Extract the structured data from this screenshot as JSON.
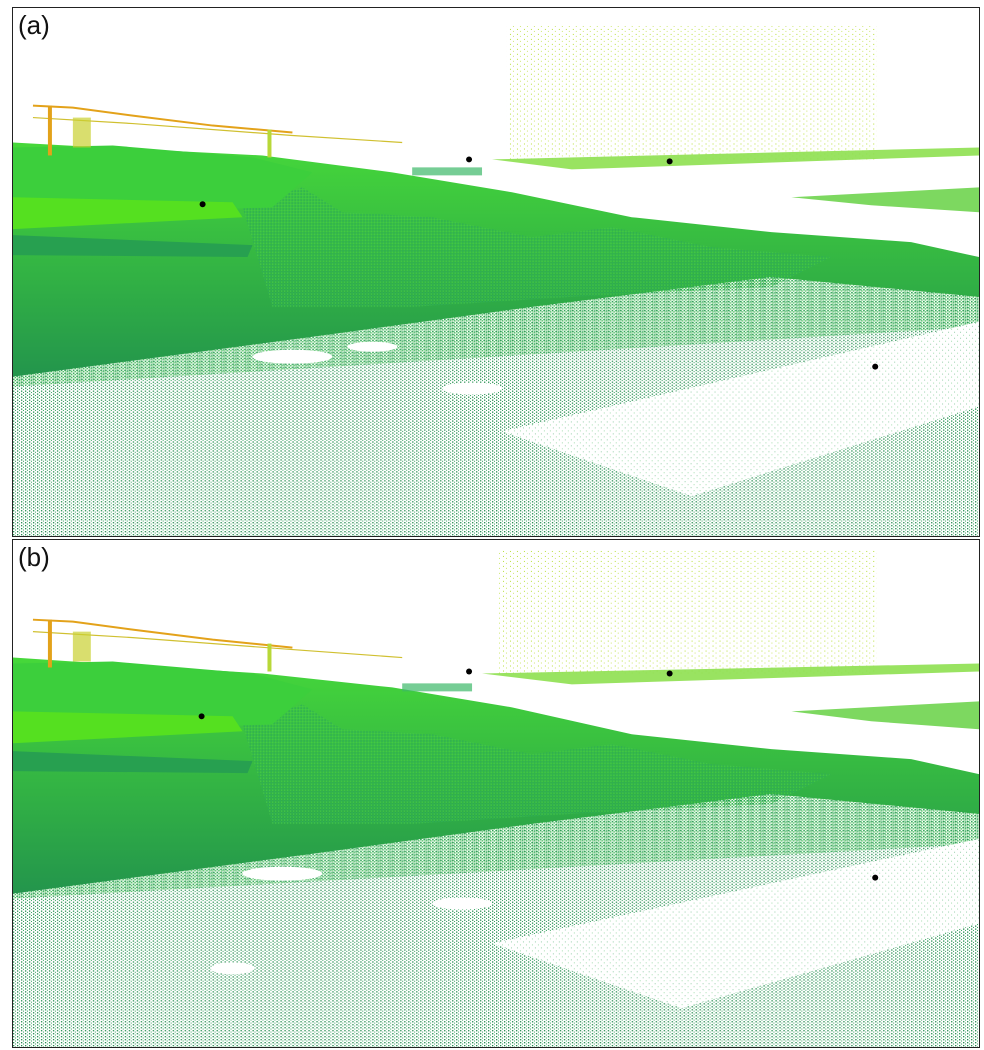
{
  "panels": [
    {
      "id": "a",
      "label": "(a)",
      "marker_count": 4,
      "colors": {
        "ground_dark": "#1e8a4a",
        "ground_mid": "#2fae54",
        "vegetation": "#3ccf3c",
        "bright_green": "#55e020",
        "yellow_green": "#b8e03a",
        "orange_top": "#e3a21a",
        "marker": "#000000"
      }
    },
    {
      "id": "b",
      "label": "(b)",
      "marker_count": 4,
      "colors": {
        "ground_dark": "#1e8a4a",
        "ground_mid": "#2fae54",
        "vegetation": "#3ccf3c",
        "bright_green": "#55e020",
        "yellow_green": "#b8e03a",
        "orange_top": "#e3a21a",
        "marker": "#000000"
      }
    }
  ]
}
